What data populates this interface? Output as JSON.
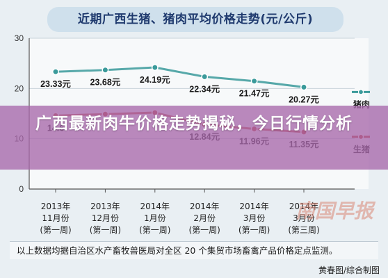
{
  "headline": "广西最新肉牛价格走势揭秘，今日行情分析",
  "chart_data": {
    "type": "line",
    "title": "近期广西生猪、猪肉平均价格走势(元/公斤)",
    "ylim": [
      0,
      30
    ],
    "y_ticks": [
      "0",
      "10",
      "20",
      "30"
    ],
    "categories": [
      [
        "2013年",
        "11月份",
        "(第一周)"
      ],
      [
        "2013年",
        "12月份",
        "(第一周)"
      ],
      [
        "2014年",
        "1月份",
        "(第一周)"
      ],
      [
        "2014年",
        "2月份",
        "(第一周)"
      ],
      [
        "2014年",
        "3月份",
        "(第一周)"
      ],
      [
        "2014年",
        "3月份",
        "(第三周)"
      ]
    ],
    "series": [
      {
        "name": "猪肉",
        "color": "#3a9a9a",
        "values": [
          23.33,
          23.68,
          24.19,
          22.34,
          21.47,
          20.27
        ],
        "labels": [
          "23.33元",
          "23.68元",
          "24.19元",
          "22.34元",
          "21.47元",
          "20.27元"
        ]
      },
      {
        "name": "生猪",
        "color": "#c0392b",
        "values": [
          14.6,
          14.9,
          15.2,
          12.84,
          11.96,
          11.35
        ],
        "labels": [
          "14.6",
          "",
          "",
          "12.84元",
          "11.96元",
          "11.35元"
        ]
      }
    ],
    "grid": true
  },
  "note": "以上数据均据自治区水产畜牧兽医局对全区 20 个集贸市场畜禽产品价格定点监测。",
  "credit": "黄春图/综合制图",
  "watermark": "南国早报"
}
